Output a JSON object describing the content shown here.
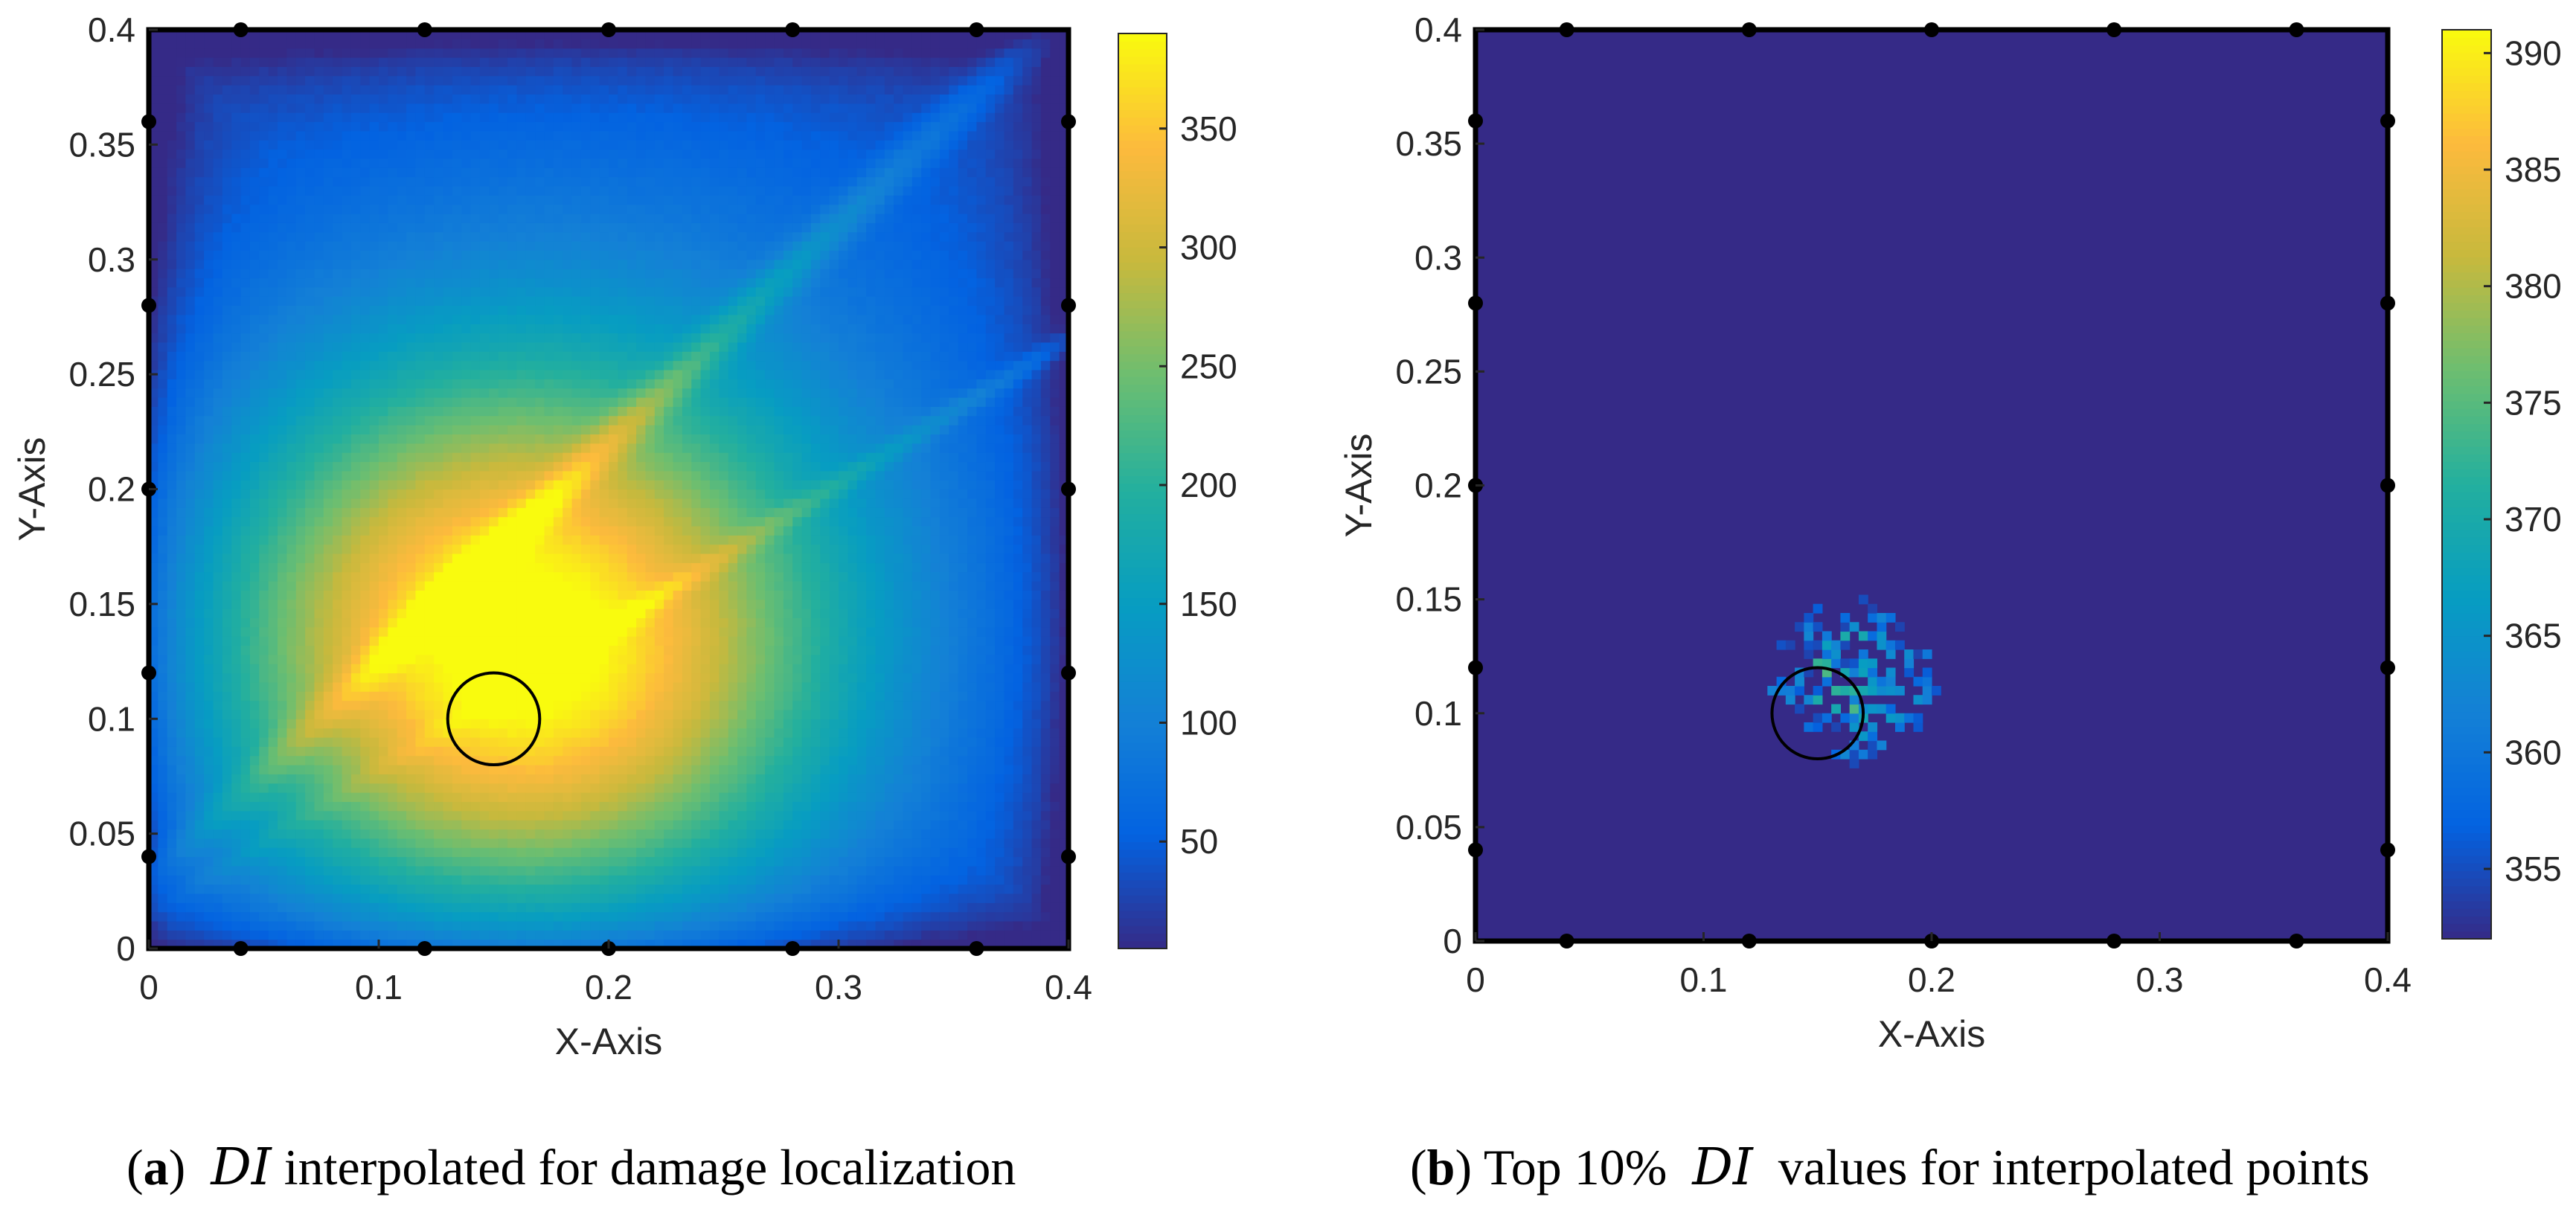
{
  "chart_data": [
    {
      "type": "heatmap",
      "panel_label": "a",
      "caption": "DI interpolated for damage localization",
      "xlabel": "X-Axis",
      "ylabel": "Y-Axis",
      "xlim": [
        0,
        0.4
      ],
      "ylim": [
        0,
        0.4
      ],
      "xticks": [
        "0",
        "0.1",
        "0.2",
        "0.3",
        "0.4"
      ],
      "yticks": [
        "0",
        "0.05",
        "0.1",
        "0.15",
        "0.2",
        "0.25",
        "0.3",
        "0.35",
        "0.4"
      ],
      "colorbar": {
        "range": [
          5,
          390
        ],
        "ticks": [
          "50",
          "100",
          "150",
          "200",
          "250",
          "300",
          "350"
        ]
      },
      "field": {
        "peak_center": [
          0.16,
          0.13
        ],
        "peak_value": 390,
        "background_value": 20
      },
      "sensor_markers": {
        "bottom_x": [
          0.04,
          0.12,
          0.2,
          0.28,
          0.36
        ],
        "top_x": [
          0.04,
          0.12,
          0.2,
          0.28,
          0.36
        ],
        "left_y": [
          0.04,
          0.12,
          0.2,
          0.28,
          0.36
        ],
        "right_y": [
          0.04,
          0.12,
          0.2,
          0.28,
          0.36
        ]
      },
      "damage_circle": {
        "center": [
          0.15,
          0.1
        ],
        "radius": 0.02
      }
    },
    {
      "type": "heatmap",
      "panel_label": "b",
      "caption_prefix": "Top 10%",
      "caption_suffix": "values for interpolated points",
      "xlabel": "X-Axis",
      "ylabel": "Y-Axis",
      "xlim": [
        0,
        0.4
      ],
      "ylim": [
        0,
        0.4
      ],
      "xticks": [
        "0",
        "0.1",
        "0.2",
        "0.3",
        "0.4"
      ],
      "yticks": [
        "0",
        "0.05",
        "0.1",
        "0.15",
        "0.2",
        "0.25",
        "0.3",
        "0.35",
        "0.4"
      ],
      "colorbar": {
        "range": [
          352,
          391
        ],
        "ticks": [
          "355",
          "360",
          "365",
          "370",
          "375",
          "380",
          "385",
          "390"
        ]
      },
      "background_value": 352,
      "cluster": {
        "center": [
          0.165,
          0.115
        ],
        "spread": [
          0.03,
          0.03
        ]
      },
      "sensor_markers": {
        "bottom_x": [
          0.04,
          0.12,
          0.2,
          0.28,
          0.36
        ],
        "top_x": [
          0.04,
          0.12,
          0.2,
          0.28,
          0.36
        ],
        "left_y": [
          0.04,
          0.12,
          0.2,
          0.28,
          0.36
        ],
        "right_y": [
          0.04,
          0.12,
          0.2,
          0.28,
          0.36
        ]
      },
      "damage_circle": {
        "center": [
          0.15,
          0.1
        ],
        "radius": 0.02
      }
    }
  ],
  "captions": {
    "a_label": "a",
    "a_text": "DI",
    "a_rest": "interpolated for damage localization",
    "b_label": "b",
    "b_pre": "Top 10%",
    "b_di": "DI",
    "b_rest": "values for interpolated points"
  }
}
